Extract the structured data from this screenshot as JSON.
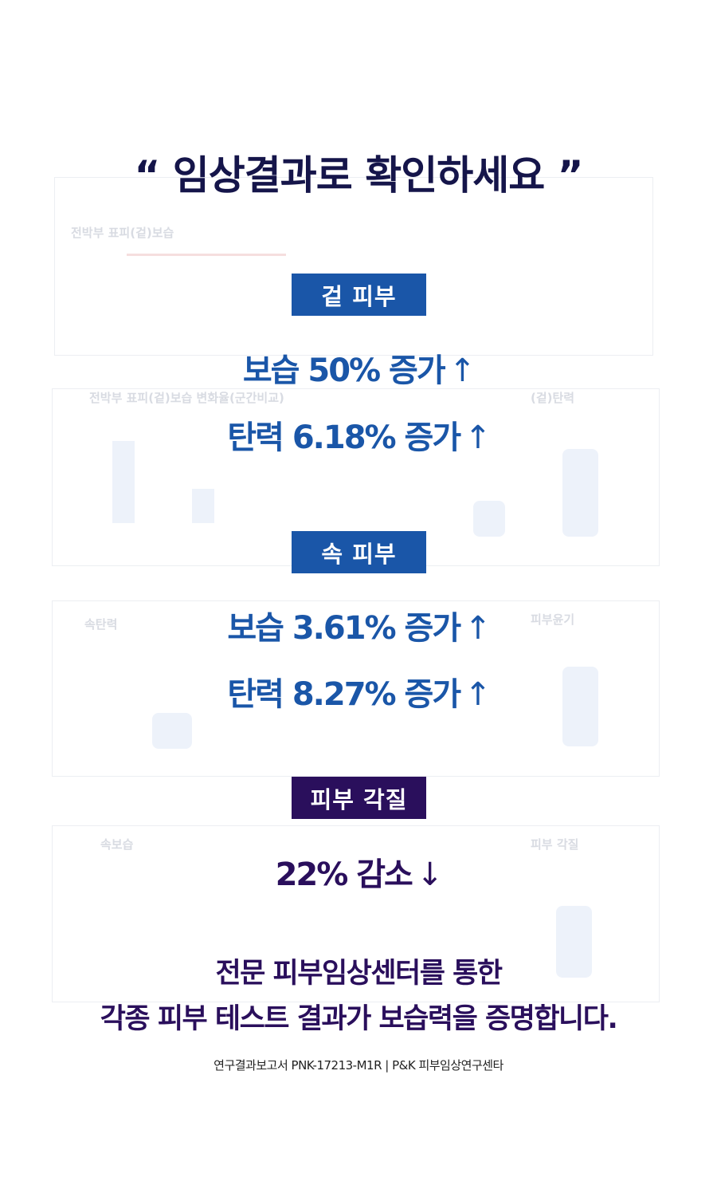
{
  "colors": {
    "title": "#15154a",
    "blue": "#1a56a8",
    "purple": "#2a0f5c"
  },
  "title": "“ 임상결과로 확인하세요 ”",
  "background_panels": {
    "panel1_title": "전박부 표피(겉)보습",
    "panel2_title": "전박부 표피(겉)보습 변화율(군간비교)",
    "panel2_right_title": "(겉)탄력",
    "panel3_title": "속탄력",
    "panel3_right_title": "피부윤기",
    "panel4_title": "속보습",
    "panel4_right_title": "피부 각질"
  },
  "sections": [
    {
      "label": "겉 피부",
      "stats": [
        {
          "text": "보습 50% 증가",
          "arrow": "↑"
        },
        {
          "text": "탄력 6.18% 증가",
          "arrow": "↑"
        }
      ]
    },
    {
      "label": "속 피부",
      "stats": [
        {
          "text": "보습 3.61% 증가",
          "arrow": "↑"
        },
        {
          "text": "탄력 8.27% 증가",
          "arrow": "↑"
        }
      ]
    },
    {
      "label": "피부 각질",
      "stats": [
        {
          "text": "22% 감소",
          "arrow": "↓"
        }
      ]
    }
  ],
  "closing": {
    "line1": "전문 피부임상센터를 통한",
    "line2": "각종 피부 테스트 결과가 보습력을 증명합니다."
  },
  "source": "연구결과보고서 PNK-17213-M1R  |  P&K 피부임상연구센타"
}
